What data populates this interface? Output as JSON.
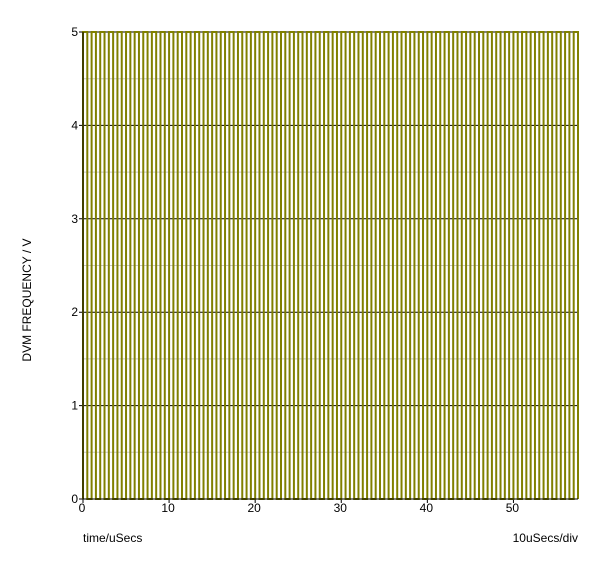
{
  "chart_data": {
    "type": "line",
    "title": "",
    "xlabel": "time/uSecs",
    "ylabel": "DVM FREQUENCY / V",
    "scale_label": "10uSecs/div",
    "xlim": [
      0,
      57.5
    ],
    "ylim": [
      0,
      5
    ],
    "x_ticks": [
      0,
      10,
      20,
      30,
      40,
      50
    ],
    "y_ticks": [
      0,
      1,
      2,
      3,
      4,
      5
    ],
    "y_minor_ticks": [
      0.5,
      1.5,
      2.5,
      3.5,
      4.5
    ],
    "grid": true,
    "series": [
      {
        "color": "#808000",
        "signal": "square wave",
        "low": 0,
        "high": 5,
        "period": 1.0,
        "duty": 0.5,
        "x_start": 0,
        "x_end": 57.5
      }
    ]
  }
}
